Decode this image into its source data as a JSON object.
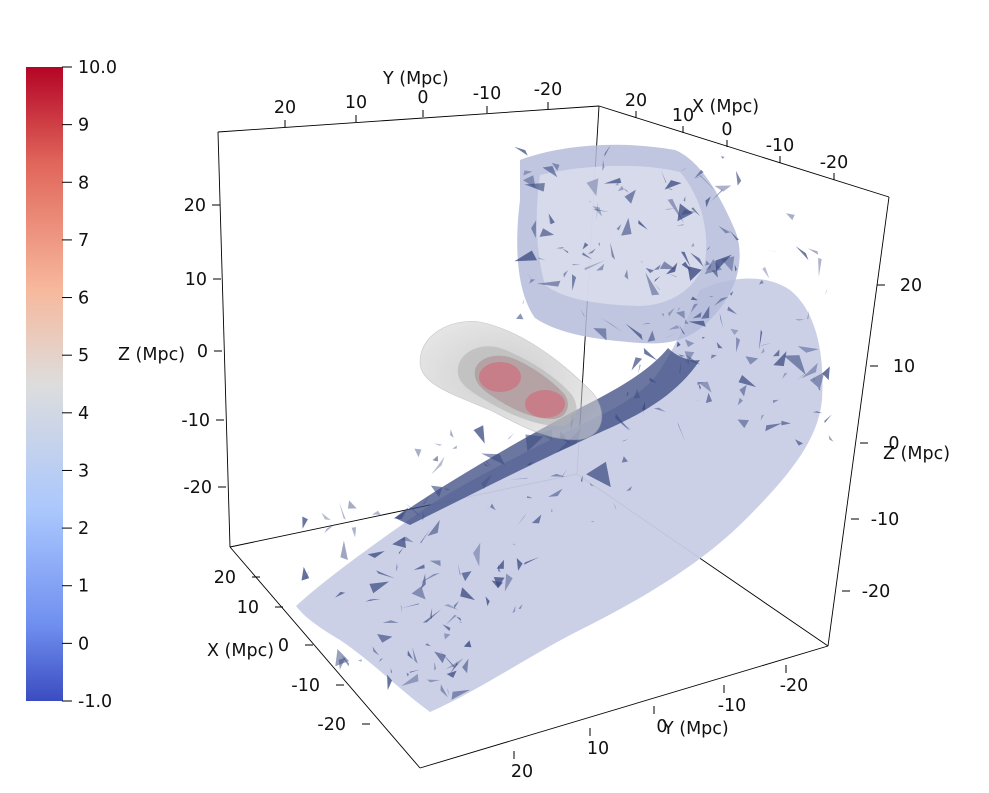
{
  "colorbar": {
    "colors": [
      "#3b4cc0",
      "#6f8ff0",
      "#aac7fd",
      "#dddddd",
      "#f7b89c",
      "#e0655a",
      "#b40426"
    ],
    "ticks": [
      "-1.0",
      "0",
      "1",
      "2",
      "3",
      "4",
      "5",
      "6",
      "7",
      "8",
      "9",
      "10.0"
    ]
  },
  "axes": {
    "y_top": {
      "title": "Y (Mpc)",
      "ticks": [
        "20",
        "10",
        "0",
        "-10",
        "-20"
      ]
    },
    "x_top": {
      "title": "X (Mpc)",
      "ticks": [
        "20",
        "10",
        "0",
        "-10",
        "-20"
      ]
    },
    "z_left": {
      "title": "Z (Mpc)",
      "ticks": [
        "20",
        "10",
        "0",
        "-10",
        "-20"
      ]
    },
    "z_right": {
      "title": "Z (Mpc)",
      "ticks": [
        "20",
        "10",
        "0",
        "-10",
        "-20"
      ]
    },
    "x_bottom": {
      "title": "X (Mpc)",
      "ticks": [
        "20",
        "10",
        "0",
        "-10",
        "-20"
      ]
    },
    "y_bottom": {
      "title": "Y (Mpc)",
      "ticks": [
        "-20",
        "-10",
        "0",
        "10",
        "20"
      ]
    }
  },
  "surfaces": {
    "filament_fill": "#c8cde6",
    "filament_dark": "#3a4a80",
    "halo_outer": "#bdbdbd",
    "halo_core": "#c97a86"
  }
}
